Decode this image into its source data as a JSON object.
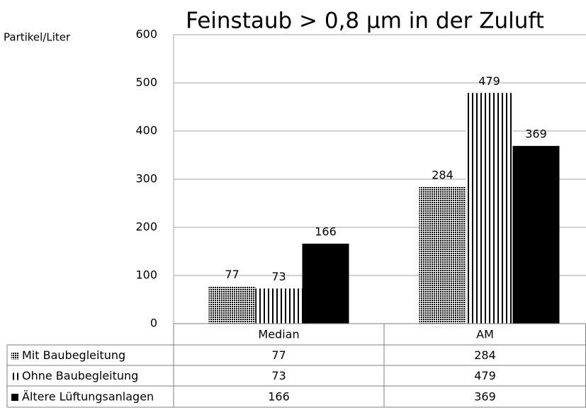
{
  "chart_data": {
    "type": "bar",
    "title": "Feinstaub > 0,8 µm in der Zuluft",
    "y_label": "Partikel/Liter",
    "categories": [
      "Median",
      "AM"
    ],
    "series": [
      {
        "name": "Mit Baubegleitung",
        "color": "#000000",
        "pattern": "checker",
        "values": [
          77,
          284
        ]
      },
      {
        "name": "Ohne Baubegleitung",
        "color": "#000000",
        "pattern": "vertical",
        "values": [
          73,
          479
        ]
      },
      {
        "name": "Ältere Lüftungsanlagen",
        "color": "#000000",
        "pattern": "solid",
        "values": [
          166,
          369
        ]
      }
    ],
    "ylim": [
      0,
      600
    ],
    "yticks": [
      0,
      100,
      200,
      300,
      400,
      500,
      600
    ],
    "grid": true,
    "data_table": true
  }
}
